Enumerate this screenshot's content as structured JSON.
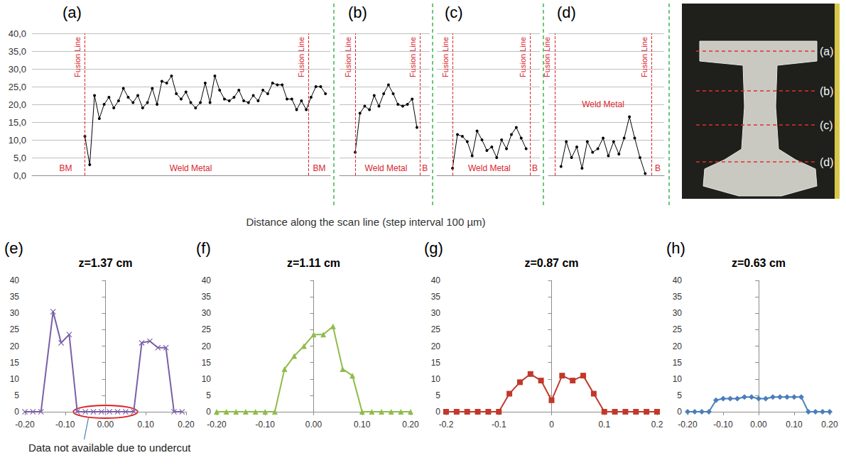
{
  "chart_data": [
    {
      "type": "line",
      "panel": "(a)",
      "color": "#000000",
      "marker": "circle",
      "grid": true,
      "tick_labels": "y",
      "x": [
        0,
        1,
        2,
        3,
        4,
        5,
        6,
        7,
        8,
        9,
        10,
        11,
        12,
        13,
        14,
        15,
        16,
        17,
        18,
        19,
        20,
        21,
        22,
        23,
        24,
        25,
        26,
        27,
        28,
        29,
        30,
        31,
        32,
        33,
        34,
        35,
        36,
        37,
        38,
        39,
        40,
        41,
        42,
        43,
        44,
        45,
        46,
        47,
        48,
        49,
        50
      ],
      "values": [
        11,
        3,
        22.5,
        16,
        20,
        22,
        19,
        21,
        24.5,
        22,
        20.5,
        22.5,
        19,
        20.5,
        24.5,
        20,
        26.5,
        26,
        28,
        23,
        21.5,
        23.5,
        20.5,
        19,
        20.5,
        26,
        20.5,
        28,
        24,
        21.5,
        21,
        22,
        24,
        21,
        20.5,
        22.5,
        21,
        24,
        23,
        26,
        25.5,
        25.5,
        21.5,
        21.5,
        18.5,
        21,
        18.5,
        22,
        25,
        25,
        23
      ],
      "xlim": [
        -11,
        51
      ],
      "ylim": [
        0,
        40
      ],
      "yticks": [
        {
          "value": 0,
          "label": "0,0"
        },
        {
          "value": 5,
          "label": "5,0"
        },
        {
          "value": 10,
          "label": "10,0"
        },
        {
          "value": 15,
          "label": "15,0"
        },
        {
          "value": 20,
          "label": "20,0"
        },
        {
          "value": 25,
          "label": "25,0"
        },
        {
          "value": 30,
          "label": "30,0"
        },
        {
          "value": 35,
          "label": "35,0"
        },
        {
          "value": 40,
          "label": "40,0"
        }
      ],
      "fusion_lines": [
        {
          "x": 0,
          "label": "Fusion Line"
        },
        {
          "x": 46.5,
          "label": "Fusion Line"
        }
      ],
      "annotations": [
        {
          "text": "BM",
          "x": -4,
          "y": 2
        },
        {
          "text": "Weld Metal",
          "x": 22,
          "y": 2
        },
        {
          "text": "BM",
          "x": 48.7,
          "y": 2
        }
      ]
    },
    {
      "type": "line",
      "panel": "(b)",
      "color": "#000000",
      "marker": "circle",
      "grid": true,
      "tick_labels": false,
      "x": [
        0,
        1,
        2,
        3,
        4,
        5,
        6,
        7,
        8,
        9,
        10,
        11,
        12,
        13
      ],
      "values": [
        6.5,
        17.5,
        19.5,
        18.5,
        22.5,
        19.5,
        23,
        25.5,
        23,
        20,
        19.5,
        20,
        21.5,
        13.5
      ],
      "xlim": [
        -3.3,
        15.7
      ],
      "ylim": [
        0,
        40
      ],
      "yticks": [
        {
          "value": 0,
          "label": "0,0"
        },
        {
          "value": 5,
          "label": "5,0"
        },
        {
          "value": 10,
          "label": "10,0"
        },
        {
          "value": 15,
          "label": "15,0"
        },
        {
          "value": 20,
          "label": "20,0"
        },
        {
          "value": 25,
          "label": "25,0"
        },
        {
          "value": 30,
          "label": "30,0"
        },
        {
          "value": 35,
          "label": "35,0"
        },
        {
          "value": 40,
          "label": "40,0"
        }
      ],
      "fusion_lines": [
        {
          "x": 0,
          "label": "Fusion Line"
        },
        {
          "x": 13.7,
          "label": "Fusion Line"
        }
      ],
      "annotations": [
        {
          "text": "Weld Metal",
          "x": 6.5,
          "y": 2
        },
        {
          "text": "B",
          "x": 14.7,
          "y": 2
        }
      ]
    },
    {
      "type": "line",
      "panel": "(c)",
      "color": "#000000",
      "marker": "circle",
      "grid": true,
      "tick_labels": false,
      "x": [
        0,
        1,
        2,
        3,
        4,
        5,
        6,
        7,
        8,
        9,
        10,
        11,
        12,
        13,
        14,
        15
      ],
      "values": [
        2,
        11.5,
        11,
        9.5,
        5.5,
        12.5,
        10,
        7,
        8,
        5,
        10,
        7.5,
        11.5,
        13.5,
        10.5,
        7.5
      ],
      "xlim": [
        -3.2,
        17.8
      ],
      "ylim": [
        0,
        40
      ],
      "yticks": [
        {
          "value": 0,
          "label": "0,0"
        },
        {
          "value": 5,
          "label": "5,0"
        },
        {
          "value": 10,
          "label": "10,0"
        },
        {
          "value": 15,
          "label": "15,0"
        },
        {
          "value": 20,
          "label": "20,0"
        },
        {
          "value": 25,
          "label": "25,0"
        },
        {
          "value": 30,
          "label": "30,0"
        },
        {
          "value": 35,
          "label": "35,0"
        },
        {
          "value": 40,
          "label": "40,0"
        }
      ],
      "fusion_lines": [
        {
          "x": 0,
          "label": "Fusion Line"
        },
        {
          "x": 15.8,
          "label": "Fusion Line"
        }
      ],
      "annotations": [
        {
          "text": "Weld Metal",
          "x": 7.5,
          "y": 2
        },
        {
          "text": "B",
          "x": 16.8,
          "y": 2
        }
      ]
    },
    {
      "type": "line",
      "panel": "(d)",
      "color": "#000000",
      "marker": "circle",
      "grid": true,
      "tick_labels": false,
      "x": [
        0,
        1,
        2,
        3,
        4,
        5,
        6,
        7,
        8,
        9,
        10,
        11,
        12,
        13,
        14,
        15,
        16
      ],
      "values": [
        2.5,
        9.5,
        5,
        8,
        2,
        9.5,
        6.5,
        7.5,
        10.5,
        5.5,
        9.5,
        6,
        10.5,
        16.5,
        10.5,
        5,
        0.5
      ],
      "xlim": [
        -2.4,
        19.6
      ],
      "ylim": [
        0,
        40
      ],
      "yticks": [
        {
          "value": 0,
          "label": "0,0"
        },
        {
          "value": 5,
          "label": "5,0"
        },
        {
          "value": 10,
          "label": "10,0"
        },
        {
          "value": 15,
          "label": "15,0"
        },
        {
          "value": 20,
          "label": "20,0"
        },
        {
          "value": 25,
          "label": "25,0"
        },
        {
          "value": 30,
          "label": "30,0"
        },
        {
          "value": 35,
          "label": "35,0"
        },
        {
          "value": 40,
          "label": "40,0"
        }
      ],
      "fusion_lines": [
        {
          "x": -1.2,
          "label": "Fusion Line"
        },
        {
          "x": 17.2,
          "label": "Fusion Line"
        }
      ],
      "annotations": [
        {
          "text": "Weld Metal",
          "x": 8,
          "y": 20
        },
        {
          "text": "B",
          "x": 18.4,
          "y": 2
        }
      ]
    },
    {
      "type": "line",
      "panel": "(e)",
      "title": "z=1.37 cm",
      "color": "#7b5ea7",
      "marker": "x",
      "grid": false,
      "x": [
        -0.2,
        -0.18,
        -0.16,
        -0.13,
        -0.11,
        -0.09,
        -0.07,
        -0.05,
        -0.03,
        -0.01,
        0.01,
        0.03,
        0.05,
        0.07,
        0.09,
        0.11,
        0.13,
        0.15,
        0.17,
        0.19
      ],
      "values": [
        0,
        0,
        0,
        30.5,
        21,
        23.5,
        0,
        0,
        0,
        0,
        0,
        0,
        0,
        0,
        21,
        21.5,
        19.5,
        19.5,
        0,
        0
      ],
      "xlim": [
        -0.2,
        0.2
      ],
      "ylim": [
        0,
        40
      ],
      "xticks": [
        {
          "value": -0.2,
          "label": "-0.20"
        },
        {
          "value": -0.1,
          "label": "-0.10"
        },
        {
          "value": 0,
          "label": "0.00"
        },
        {
          "value": 0.1,
          "label": "0.10"
        },
        {
          "value": 0.2,
          "label": "0.20"
        }
      ],
      "yticks": [
        0,
        5,
        10,
        15,
        20,
        25,
        30,
        35,
        40
      ],
      "annotations": [
        {
          "text": "Data not available due to undercut",
          "span": [
            -0.08,
            0.08
          ]
        }
      ]
    },
    {
      "type": "line",
      "panel": "(f)",
      "title": "z=1.11 cm",
      "color": "#8fbc4a",
      "marker": "triangle",
      "grid": false,
      "x": [
        -0.2,
        -0.18,
        -0.16,
        -0.14,
        -0.12,
        -0.1,
        -0.08,
        -0.06,
        -0.04,
        -0.02,
        0,
        0.02,
        0.04,
        0.06,
        0.08,
        0.1,
        0.12,
        0.14,
        0.16,
        0.18,
        0.2
      ],
      "values": [
        0,
        0,
        0,
        0,
        0,
        0,
        0,
        13,
        17,
        20,
        23.5,
        23.5,
        26,
        13,
        11,
        0,
        0,
        0,
        0,
        0,
        0
      ],
      "xlim": [
        -0.2,
        0.2
      ],
      "ylim": [
        0,
        40
      ],
      "xticks": [
        {
          "value": -0.2,
          "label": "-0.20"
        },
        {
          "value": -0.1,
          "label": "-0.10"
        },
        {
          "value": 0,
          "label": "0.00"
        },
        {
          "value": 0.1,
          "label": "0.10"
        },
        {
          "value": 0.2,
          "label": "0.20"
        }
      ],
      "yticks": [
        0,
        5,
        10,
        15,
        20,
        25,
        30,
        35,
        40
      ]
    },
    {
      "type": "line",
      "panel": "(g)",
      "title": "z=0.87 cm",
      "color": "#c0392b",
      "marker": "square",
      "grid": false,
      "x": [
        -0.2,
        -0.18,
        -0.16,
        -0.14,
        -0.12,
        -0.1,
        -0.08,
        -0.06,
        -0.04,
        -0.02,
        0,
        0.02,
        0.04,
        0.06,
        0.08,
        0.1,
        0.12,
        0.14,
        0.16,
        0.18,
        0.2
      ],
      "values": [
        0,
        0,
        0,
        0,
        0,
        0,
        5.5,
        9,
        11.5,
        9.5,
        3.5,
        11,
        9.5,
        11,
        5.5,
        0,
        0,
        0,
        0,
        0,
        0
      ],
      "xlim": [
        -0.2,
        0.2
      ],
      "ylim": [
        0,
        40
      ],
      "xticks": [
        -0.2,
        -0.1,
        0,
        0.1,
        0.2
      ],
      "yticks": [
        0,
        5,
        10,
        15,
        20,
        25,
        30,
        35,
        40
      ]
    },
    {
      "type": "line",
      "panel": "(h)",
      "title": "z=0.63 cm",
      "color": "#4a7ebb",
      "marker": "diamond",
      "grid": false,
      "x": [
        -0.2,
        -0.18,
        -0.16,
        -0.14,
        -0.12,
        -0.1,
        -0.08,
        -0.06,
        -0.04,
        -0.02,
        0,
        0.02,
        0.04,
        0.06,
        0.08,
        0.1,
        0.12,
        0.14,
        0.16,
        0.18,
        0.2
      ],
      "values": [
        0,
        0,
        0,
        0,
        3.5,
        4,
        4,
        4,
        4.5,
        4.5,
        4,
        4,
        4.5,
        4.5,
        4.5,
        4.5,
        4.5,
        0,
        0,
        0,
        0
      ],
      "xlim": [
        -0.2,
        0.2
      ],
      "ylim": [
        0,
        40
      ],
      "xticks": [
        {
          "value": -0.2,
          "label": "-0.20"
        },
        {
          "value": -0.1,
          "label": "-0.10"
        },
        {
          "value": 0,
          "label": "0.00"
        },
        {
          "value": 0.1,
          "label": "0.10"
        },
        {
          "value": 0.2,
          "label": "0.20"
        }
      ],
      "yticks": [
        0,
        5,
        10,
        15,
        20,
        25,
        30,
        35,
        40
      ]
    }
  ],
  "figure": {
    "xlabel": "Distance along the scan line (step interval 100 µm)",
    "photo": {
      "labels": [
        "(a)",
        "(b)",
        "(c)",
        "(d)"
      ]
    }
  }
}
